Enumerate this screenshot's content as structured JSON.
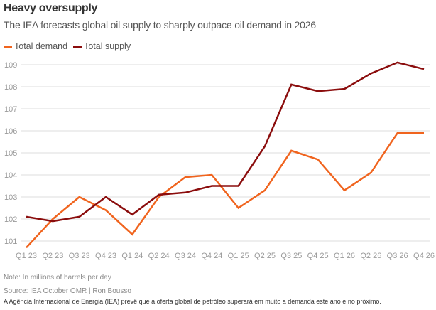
{
  "header": {
    "title": "Heavy oversupply",
    "subtitle": "The IEA forecasts global oil supply to sharply outpace oil demand in 2026"
  },
  "footer": {
    "note": "Note: In millions of barrels per day",
    "source": "Source: IEA October OMR | Ron Bousso",
    "caption": "A Agência Internacional de Energia (IEA) prevê que a oferta global de petróleo superará em muito a demanda este ano e no próximo."
  },
  "chart_data": {
    "type": "line",
    "title": "Heavy oversupply",
    "subtitle": "The IEA forecasts global oil supply to sharply outpace oil demand in 2026",
    "xlabel": "",
    "ylabel": "",
    "units": "millions of barrels per day",
    "categories": [
      "Q1 23",
      "Q2 23",
      "Q3 23",
      "Q4 23",
      "Q1 24",
      "Q2 24",
      "Q3 24",
      "Q4 24",
      "Q1 25",
      "Q2 25",
      "Q3 25",
      "Q4 25",
      "Q1 26",
      "Q2 26",
      "Q3 26",
      "Q4 26"
    ],
    "series": [
      {
        "name": "Total demand",
        "color": "#f0641e",
        "values": [
          100.7,
          102.0,
          103.0,
          102.4,
          101.3,
          103.0,
          103.9,
          104.0,
          102.5,
          103.3,
          105.1,
          104.7,
          103.3,
          104.1,
          105.9,
          105.9
        ]
      },
      {
        "name": "Total supply",
        "color": "#8b0d0d",
        "values": [
          102.1,
          101.9,
          102.1,
          103.0,
          102.2,
          103.1,
          103.2,
          103.5,
          103.5,
          105.3,
          108.1,
          107.8,
          107.9,
          108.6,
          109.1,
          108.8
        ]
      }
    ],
    "yticks": [
      101,
      102,
      103,
      104,
      105,
      106,
      107,
      108,
      109
    ],
    "ylim": [
      100.6,
      109.3
    ],
    "grid": true,
    "legend": "top-left",
    "gridline_color": "#dcdcdc",
    "tick_label_color": "#9a9a9a"
  }
}
